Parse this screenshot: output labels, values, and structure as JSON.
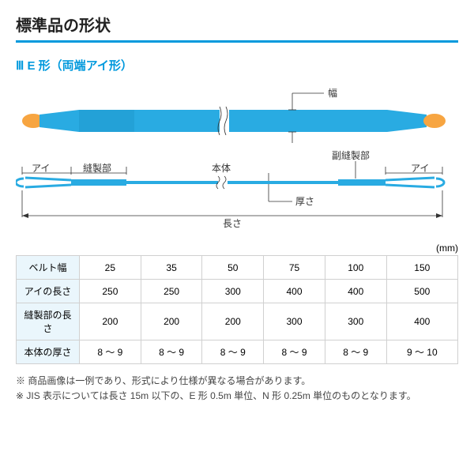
{
  "title": "標準品の形状",
  "subtitle": "Ⅲ E 形（両端アイ形）",
  "diagram": {
    "width_label": "幅",
    "eye_label": "アイ",
    "sewn_label": "縫製部",
    "body_label": "本体",
    "sub_sewn_label": "副縫製部",
    "thickness_label": "厚さ",
    "length_label": "長さ",
    "belt_color": "#29abe2",
    "eye_color": "#f7a541",
    "sewn_shade": "#1b8fc4",
    "leader_color": "#333333"
  },
  "unit": "(mm)",
  "table": {
    "headers": [
      "ベルト幅",
      "アイの長さ",
      "縫製部の長さ",
      "本体の厚さ"
    ],
    "cols": [
      [
        "25",
        "250",
        "200",
        "8 ～ 9"
      ],
      [
        "35",
        "250",
        "200",
        "8 ～ 9"
      ],
      [
        "50",
        "300",
        "200",
        "8 ～ 9"
      ],
      [
        "75",
        "400",
        "300",
        "8 ～ 9"
      ],
      [
        "100",
        "400",
        "300",
        "8 ～ 9"
      ],
      [
        "150",
        "500",
        "400",
        "9 ～ 10"
      ]
    ]
  },
  "notes": [
    "※ 商品画像は一例であり、形式により仕様が異なる場合があります。",
    "※ JIS 表示については長さ 15m 以下の、E 形 0.5m 単位、N 形 0.25m 単位のものとなります。"
  ]
}
